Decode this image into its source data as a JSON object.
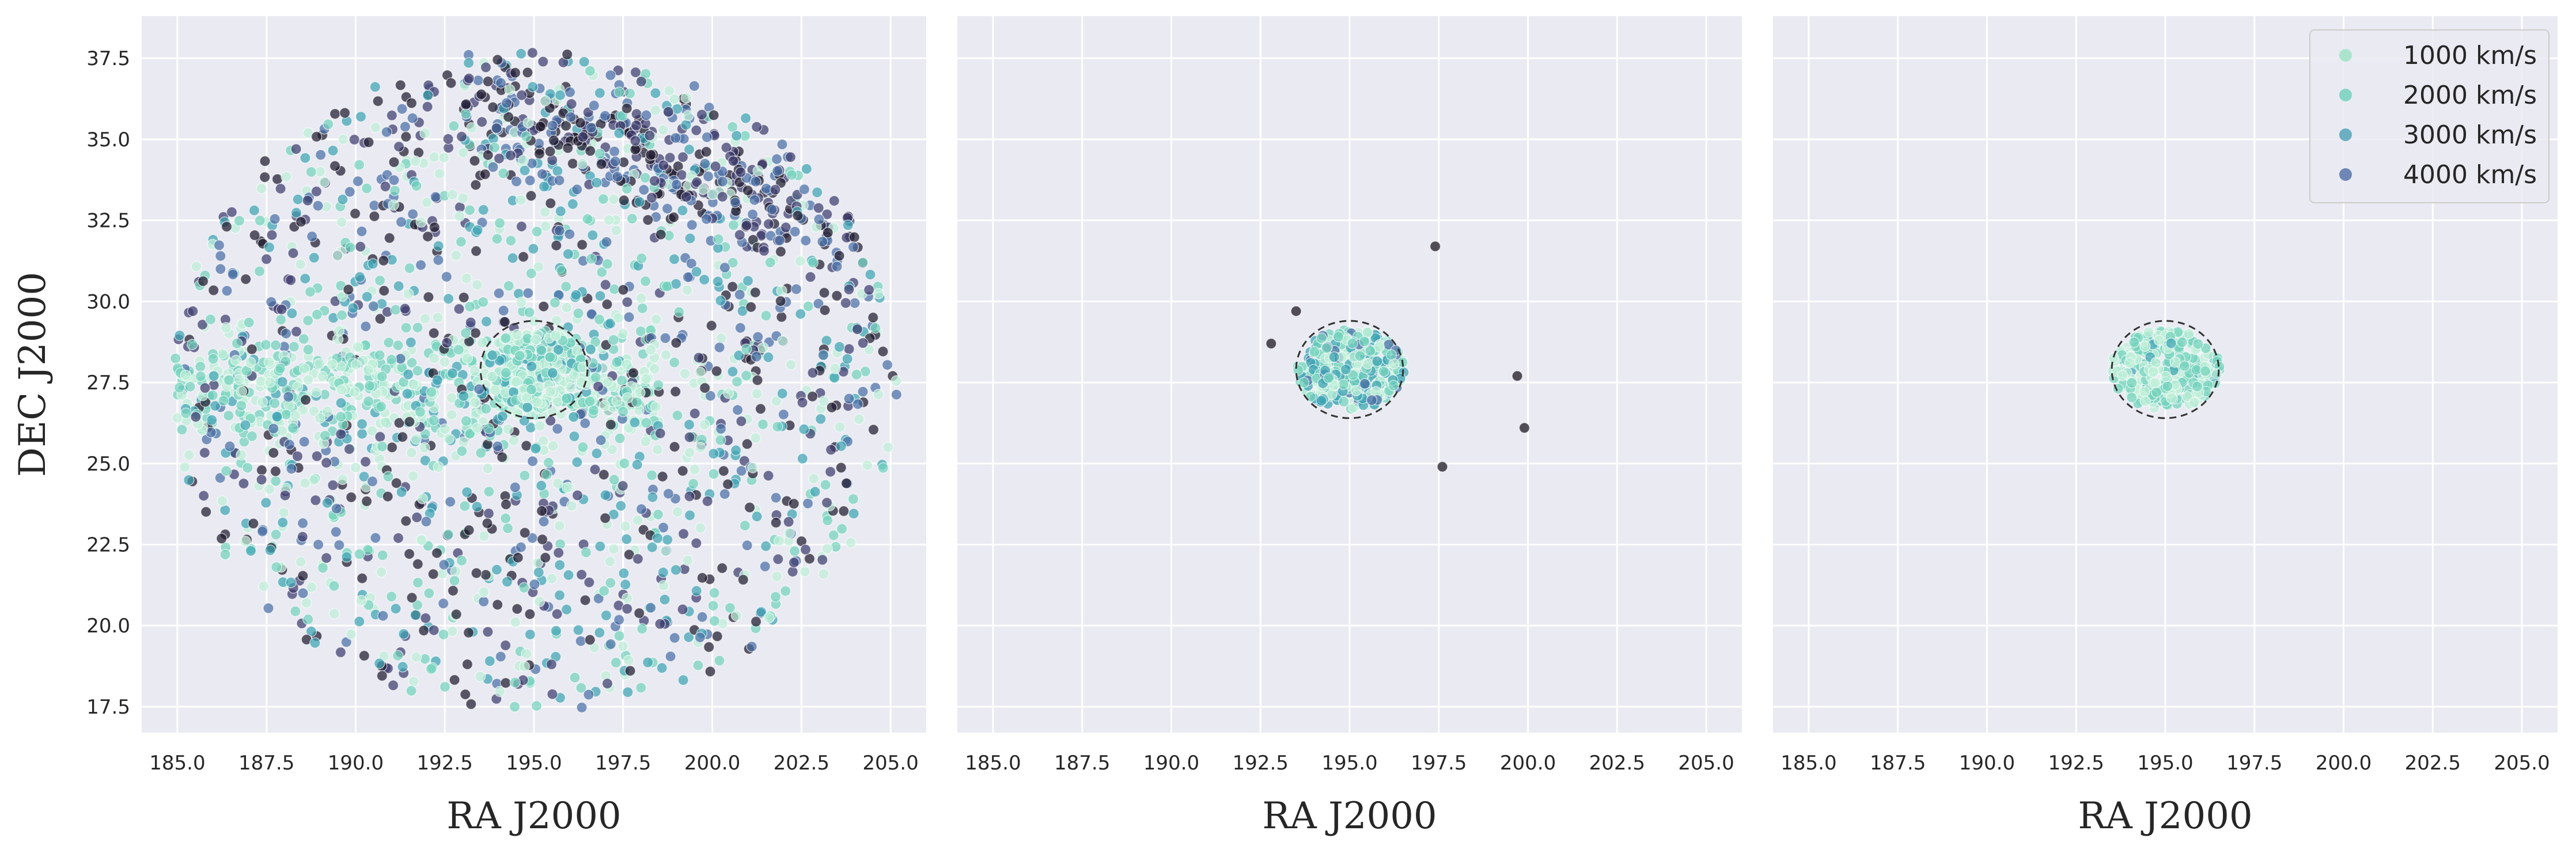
{
  "chart_data": [
    {
      "type": "scatter",
      "panel": "left",
      "xlabel": "RA J2000",
      "ylabel": "DEC J2000",
      "xlim": [
        184,
        206
      ],
      "ylim": [
        16.7,
        38.8
      ],
      "xticks": [
        "185.0",
        "187.5",
        "190.0",
        "192.5",
        "195.0",
        "197.5",
        "200.0",
        "202.5",
        "205.0"
      ],
      "yticks": [
        "17.5",
        "20.0",
        "22.5",
        "25.0",
        "27.5",
        "30.0",
        "32.5",
        "35.0",
        "37.5"
      ],
      "grid": true,
      "circle": {
        "center": [
          195.0,
          27.9
        ],
        "radius_deg": 1.5
      },
      "population": {
        "description_center": [
          195.0,
          27.5
        ],
        "radius_deg": 10.2,
        "approx_points": 2600
      },
      "color_scale": [
        "#bfeed8",
        "#74d2bd",
        "#3fa3b3",
        "#4a6fa5",
        "#3d3b6e",
        "#1e1a2e"
      ]
    },
    {
      "type": "scatter",
      "panel": "middle",
      "xlabel": "RA J2000",
      "ylabel": "",
      "xlim": [
        184,
        206
      ],
      "ylim": [
        16.7,
        38.8
      ],
      "xticks": [
        "185.0",
        "187.5",
        "190.0",
        "192.5",
        "195.0",
        "197.5",
        "200.0",
        "202.5",
        "205.0"
      ],
      "grid": true,
      "circle": {
        "center": [
          195.0,
          27.9
        ],
        "radius_deg": 1.5
      },
      "outliers": [
        {
          "x": 197.4,
          "y": 31.7
        },
        {
          "x": 199.7,
          "y": 27.7
        },
        {
          "x": 199.9,
          "y": 26.1
        },
        {
          "x": 197.6,
          "y": 24.9
        },
        {
          "x": 193.5,
          "y": 29.7
        },
        {
          "x": 192.8,
          "y": 28.7
        }
      ]
    },
    {
      "type": "scatter",
      "panel": "right",
      "xlabel": "RA J2000",
      "ylabel": "",
      "xlim": [
        184,
        206
      ],
      "ylim": [
        16.7,
        38.8
      ],
      "xticks": [
        "185.0",
        "187.5",
        "190.0",
        "192.5",
        "195.0",
        "197.5",
        "200.0",
        "202.5",
        "205.0"
      ],
      "grid": true,
      "circle": {
        "center": [
          195.0,
          27.9
        ],
        "radius_deg": 1.5
      },
      "legend": {
        "placement": "top-right",
        "entries": [
          {
            "label": "1000 km/s",
            "color": "#9fe3c6"
          },
          {
            "label": "2000 km/s",
            "color": "#74d2bd"
          },
          {
            "label": "3000 km/s",
            "color": "#55a6ba"
          },
          {
            "label": "4000 km/s",
            "color": "#5975ac"
          }
        ]
      }
    }
  ],
  "style": {
    "axes_bg": "#eaeaf2",
    "grid_color": "#ffffff"
  }
}
